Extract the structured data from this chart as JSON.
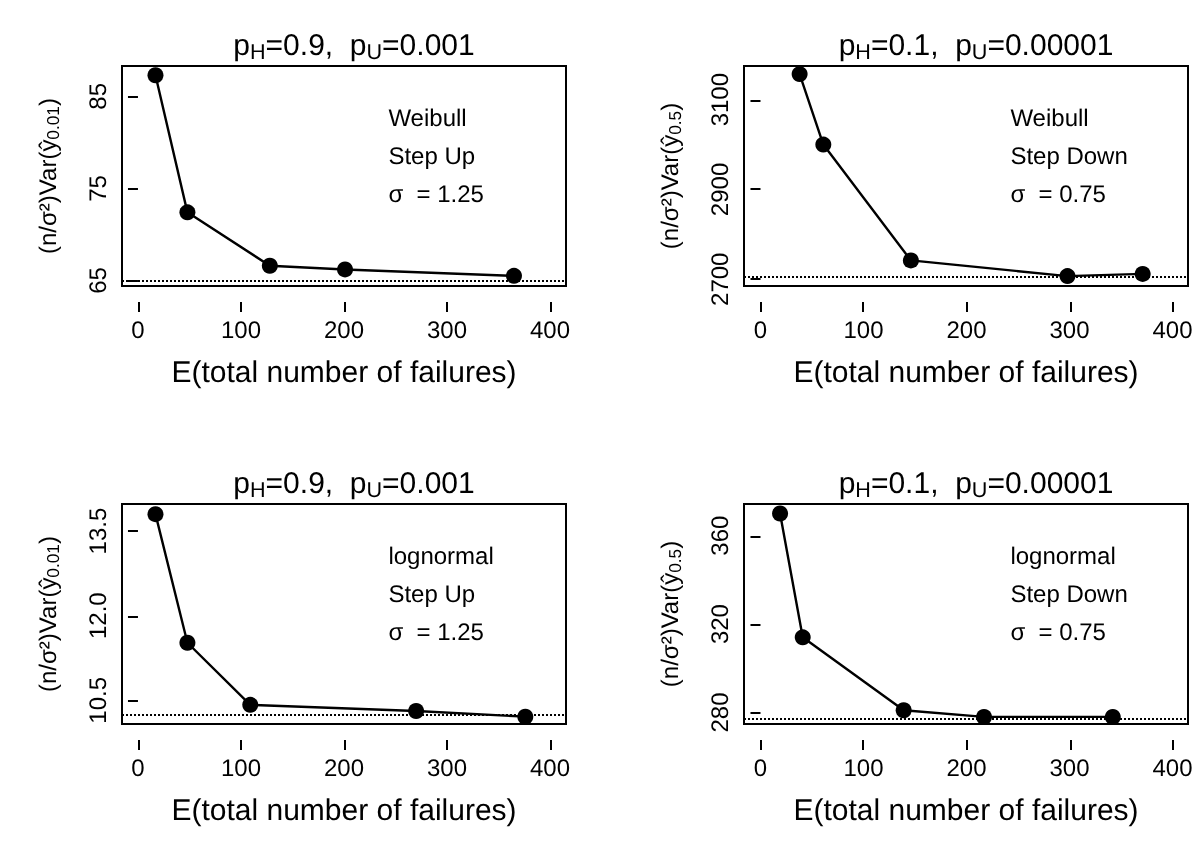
{
  "chart_data": [
    {
      "type": "line",
      "title": "p$_{H}$=0.9,  p$_{U}$=0.001",
      "xlabel": "E(total number of failures)",
      "ylabel": "(n/σ²)Var(ŷ$_{0.01}$)",
      "annotations": [
        "Weibull",
        "Step Up",
        "σ  = 1.25"
      ],
      "x": [
        17,
        48,
        128,
        201,
        365
      ],
      "series": [
        {
          "color": "#000000",
          "values": [
            87.3,
            72.4,
            66.6,
            66.2,
            65.5
          ]
        }
      ],
      "xlim": [
        -15.5,
        415.5
      ],
      "xticks": [
        0,
        100,
        200,
        300,
        400
      ],
      "ylim": [
        64.4,
        88.3
      ],
      "yticks": [
        65,
        75,
        85
      ],
      "ref_lines": [
        {
          "axis": "y",
          "value": 65.1,
          "line_style": "dotted",
          "color": "#000000"
        }
      ],
      "marker": "circle",
      "line_style": "solid",
      "grid": false
    },
    {
      "type": "line",
      "title": "p$_{H}$=0.1,  p$_{U}$=0.00001",
      "xlabel": "E(total number of failures)",
      "ylabel": "(n/σ²)Var(ŷ$_{0.5}$)",
      "annotations": [
        "Weibull",
        "Step Down",
        "σ  = 0.75"
      ],
      "x": [
        38,
        61,
        146,
        298,
        371
      ],
      "series": [
        {
          "color": "#000000",
          "values": [
            3157,
            3000,
            2742,
            2707,
            2712
          ]
        }
      ],
      "xlim": [
        -16,
        415
      ],
      "xticks": [
        0,
        100,
        200,
        300,
        400
      ],
      "ylim": [
        2685,
        3175
      ],
      "yticks": [
        2700,
        2900,
        3100
      ],
      "ref_lines": [
        {
          "axis": "y",
          "value": 2705,
          "line_style": "dotted",
          "color": "#000000"
        }
      ],
      "marker": "circle",
      "line_style": "solid",
      "grid": false
    },
    {
      "type": "line",
      "title": "p$_{H}$=0.9,  p$_{U}$=0.001",
      "xlabel": "E(total number of failures)",
      "ylabel": "(n/σ²)Var(ŷ$_{0.01}$)",
      "annotations": [
        "lognormal",
        "Step Up",
        "σ  = 1.25"
      ],
      "x": [
        17,
        48,
        109,
        270,
        376
      ],
      "series": [
        {
          "color": "#000000",
          "values": [
            13.8,
            11.52,
            10.42,
            10.31,
            10.21
          ]
        }
      ],
      "xlim": [
        -15.5,
        415.5
      ],
      "xticks": [
        0,
        100,
        200,
        300,
        400
      ],
      "ylim": [
        10.08,
        13.98
      ],
      "yticks": [
        {
          "value": 10.5,
          "label": "10.5"
        },
        {
          "value": 12,
          "label": "12.0"
        },
        {
          "value": 13.5,
          "label": "13.5"
        }
      ],
      "ref_lines": [
        {
          "axis": "y",
          "value": 10.25,
          "line_style": "dotted",
          "color": "#000000"
        }
      ],
      "marker": "circle",
      "line_style": "solid",
      "grid": false
    },
    {
      "type": "line",
      "title": "p$_{H}$=0.1,  p$_{U}$=0.00001",
      "xlabel": "E(total number of failures)",
      "ylabel": "(n/σ²)Var(ŷ$_{0.5}$)",
      "annotations": [
        "lognormal",
        "Step Down",
        "σ  = 0.75"
      ],
      "x": [
        19,
        41,
        139,
        217,
        342
      ],
      "series": [
        {
          "color": "#000000",
          "values": [
            370,
            314,
            281,
            278,
            278
          ]
        }
      ],
      "xlim": [
        -16,
        415
      ],
      "xticks": [
        0,
        100,
        200,
        300,
        400
      ],
      "ylim": [
        274.8,
        374.3
      ],
      "yticks": [
        280,
        320,
        360
      ],
      "ref_lines": [
        {
          "axis": "y",
          "value": 277,
          "line_style": "dotted",
          "color": "#000000"
        }
      ],
      "marker": "circle",
      "line_style": "solid",
      "grid": false
    }
  ]
}
